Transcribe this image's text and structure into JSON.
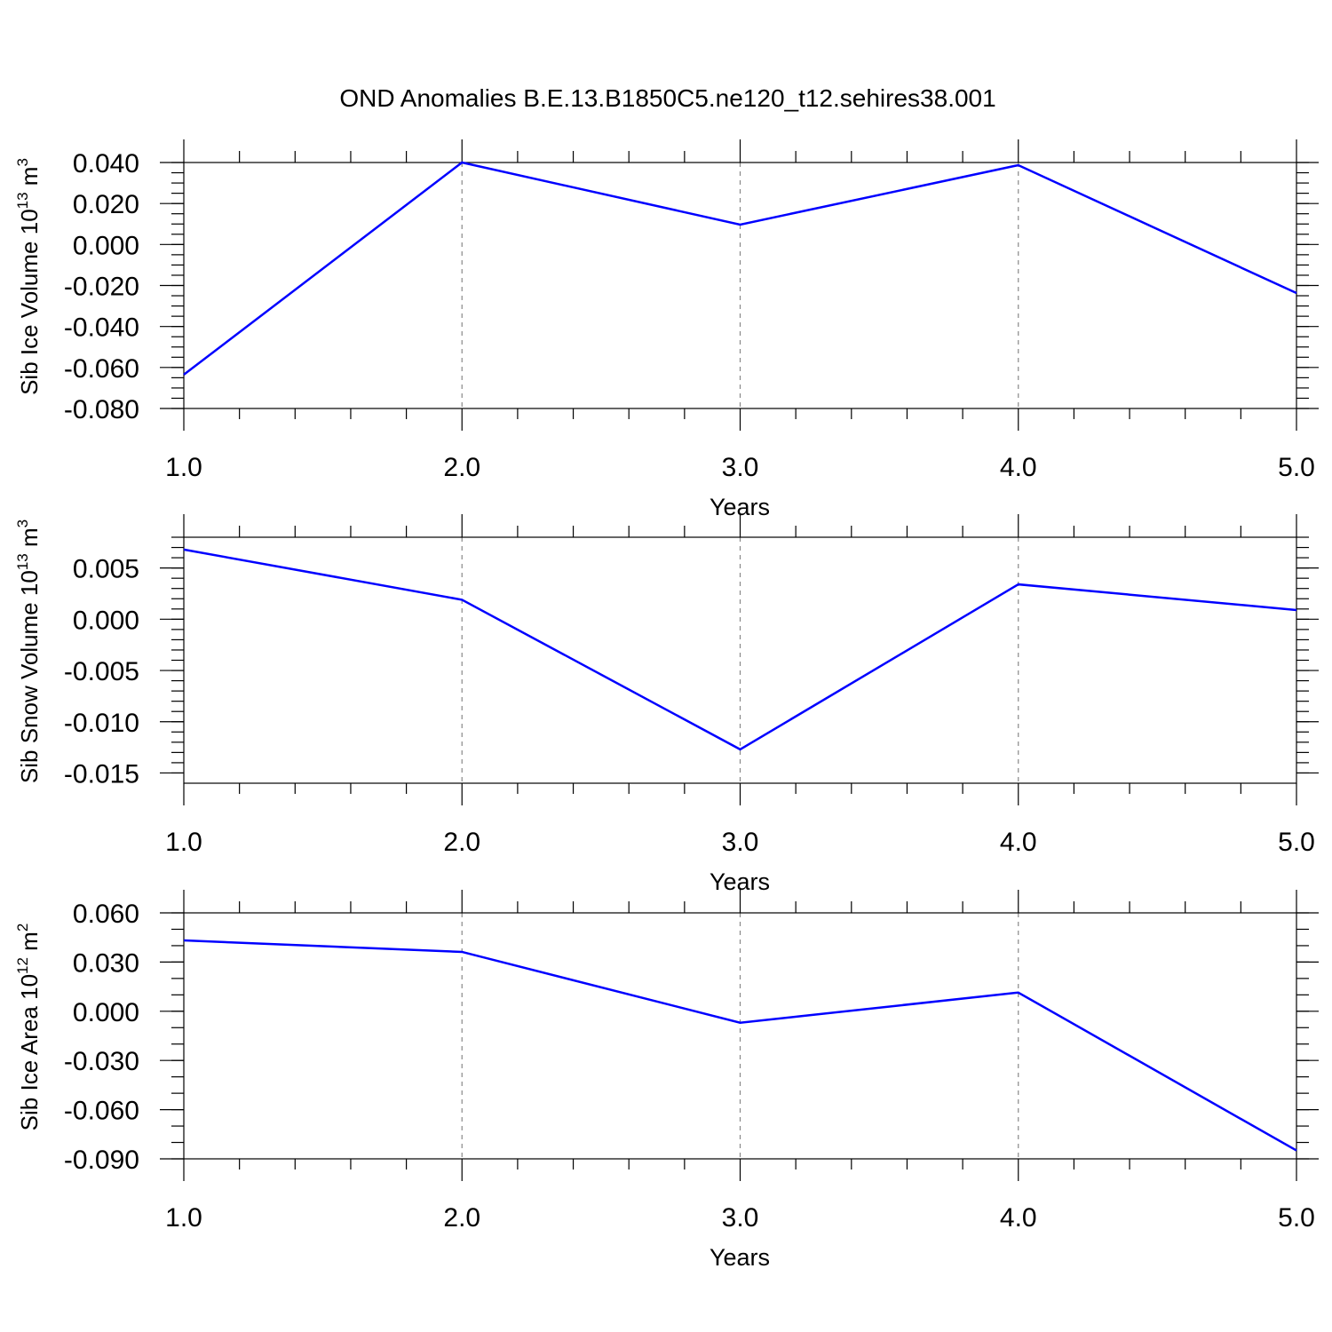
{
  "title": "OND Anomalies B.E.13.B1850C5.ne120_t12.sehires38.001",
  "chart_data": [
    {
      "type": "line",
      "ylabel_parts": [
        "Sib Ice Volume 10",
        "13",
        " m",
        "3"
      ],
      "xlabel": "Years",
      "x": [
        1,
        2,
        3,
        4,
        5
      ],
      "xlim": [
        1,
        5
      ],
      "xticks": [
        {
          "value": 1,
          "label": "1.0"
        },
        {
          "value": 2,
          "label": "2.0"
        },
        {
          "value": 3,
          "label": "3.0"
        },
        {
          "value": 4,
          "label": "4.0"
        },
        {
          "value": 5,
          "label": "5.0"
        }
      ],
      "ylim": [
        -0.08,
        0.04
      ],
      "yticks": [
        {
          "value": -0.08,
          "label": "-0.080"
        },
        {
          "value": -0.06,
          "label": "-0.060"
        },
        {
          "value": -0.04,
          "label": "-0.040"
        },
        {
          "value": -0.02,
          "label": "-0.020"
        },
        {
          "value": 0,
          "label": "0.000"
        },
        {
          "value": 0.02,
          "label": "0.020"
        },
        {
          "value": 0.04,
          "label": "0.040"
        }
      ],
      "y_minor_per_major": 4,
      "xgrid": true,
      "series": [
        {
          "color": "#0000ff",
          "values": [
            -0.0635,
            0.04,
            0.0097,
            0.0387,
            -0.0237
          ]
        }
      ]
    },
    {
      "type": "line",
      "ylabel_parts": [
        "Sib Snow Volume 10",
        "13",
        " m",
        "3"
      ],
      "xlabel": "Years",
      "x": [
        1,
        2,
        3,
        4,
        5
      ],
      "xlim": [
        1,
        5
      ],
      "xticks": [
        {
          "value": 1,
          "label": "1.0"
        },
        {
          "value": 2,
          "label": "2.0"
        },
        {
          "value": 3,
          "label": "3.0"
        },
        {
          "value": 4,
          "label": "4.0"
        },
        {
          "value": 5,
          "label": "5.0"
        }
      ],
      "ylim": [
        -0.016,
        0.008
      ],
      "yticks": [
        {
          "value": -0.015,
          "label": "-0.015"
        },
        {
          "value": -0.01,
          "label": "-0.010"
        },
        {
          "value": -0.005,
          "label": "-0.005"
        },
        {
          "value": 0,
          "label": "0.000"
        },
        {
          "value": 0.005,
          "label": "0.005"
        }
      ],
      "y_minor_per_major": 5,
      "xgrid": true,
      "series": [
        {
          "color": "#0000ff",
          "values": [
            0.0068,
            0.0019,
            -0.0127,
            0.0034,
            0.0009
          ]
        }
      ]
    },
    {
      "type": "line",
      "ylabel_parts": [
        "Sib Ice Area 10",
        "12",
        " m",
        "2"
      ],
      "xlabel": "Years",
      "x": [
        1,
        2,
        3,
        4,
        5
      ],
      "xlim": [
        1,
        5
      ],
      "xticks": [
        {
          "value": 1,
          "label": "1.0"
        },
        {
          "value": 2,
          "label": "2.0"
        },
        {
          "value": 3,
          "label": "3.0"
        },
        {
          "value": 4,
          "label": "4.0"
        },
        {
          "value": 5,
          "label": "5.0"
        }
      ],
      "ylim": [
        -0.09,
        0.06
      ],
      "yticks": [
        {
          "value": -0.09,
          "label": "-0.090"
        },
        {
          "value": -0.06,
          "label": "-0.060"
        },
        {
          "value": -0.03,
          "label": "-0.030"
        },
        {
          "value": 0,
          "label": "0.000"
        },
        {
          "value": 0.03,
          "label": "0.030"
        },
        {
          "value": 0.06,
          "label": "0.060"
        }
      ],
      "y_minor_per_major": 3,
      "xgrid": true,
      "series": [
        {
          "color": "#0000ff",
          "values": [
            0.0432,
            0.0362,
            -0.007,
            0.0114,
            -0.0849
          ]
        }
      ]
    }
  ]
}
